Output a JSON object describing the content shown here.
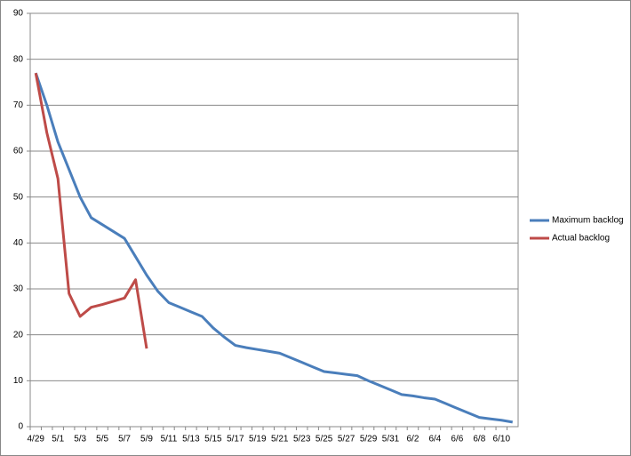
{
  "chart_data": {
    "type": "line",
    "categories": [
      "4/29",
      null,
      "5/1",
      null,
      "5/3",
      null,
      "5/5",
      null,
      "5/7",
      null,
      "5/9",
      null,
      "5/11",
      null,
      "5/13",
      null,
      "5/15",
      null,
      "5/17",
      null,
      "5/19",
      null,
      "5/21",
      null,
      "5/23",
      null,
      "5/25",
      null,
      "5/27",
      null,
      "5/29",
      null,
      "5/31",
      null,
      "6/2",
      null,
      "6/4",
      null,
      "6/6",
      null,
      "6/8",
      null,
      "6/10",
      null
    ],
    "series": [
      {
        "name": "Maximum backlog",
        "color": "#4a7ebb",
        "values": [
          77,
          70,
          62,
          56,
          50,
          45.5,
          44,
          42.5,
          41,
          37,
          33,
          29.5,
          27,
          26,
          25,
          24,
          21.5,
          19.5,
          17.7,
          17.2,
          16.8,
          16.4,
          16,
          15,
          14,
          13,
          12,
          11.7,
          11.4,
          11.1,
          10,
          9,
          8,
          7,
          6.7,
          6.3,
          6,
          5,
          4,
          3,
          2,
          1.7,
          1.4,
          1
        ]
      },
      {
        "name": "Actual backlog",
        "color": "#be4b48",
        "values": [
          77,
          64,
          54,
          29,
          24,
          26,
          26.6,
          27.3,
          28,
          32,
          17,
          null,
          null,
          null,
          null,
          null,
          null,
          null,
          null,
          null,
          null,
          null,
          null,
          null,
          null,
          null,
          null,
          null,
          null,
          null,
          null,
          null,
          null,
          null,
          null,
          null,
          null,
          null,
          null,
          null,
          null,
          null,
          null,
          null
        ]
      }
    ],
    "ylim": [
      0,
      90
    ],
    "yticks": [
      0,
      10,
      20,
      30,
      40,
      50,
      60,
      70,
      80,
      90
    ],
    "grid": true,
    "legend": "right"
  }
}
